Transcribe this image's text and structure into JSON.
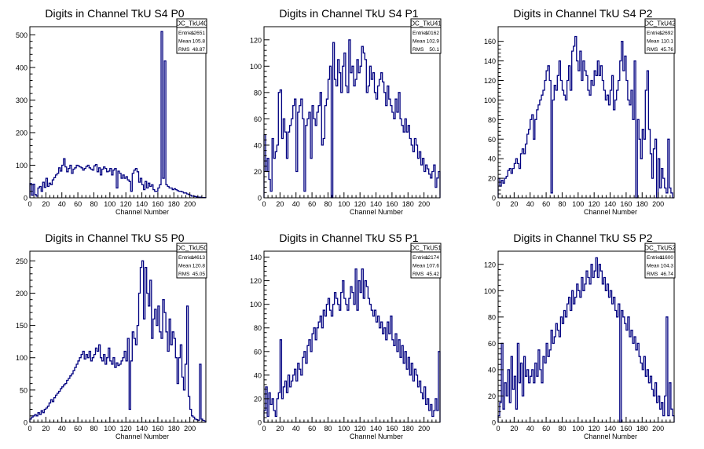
{
  "colors": {
    "line": "#000080",
    "frame": "#000000",
    "background": "#ffffff"
  },
  "chart_data": [
    {
      "type": "histogram",
      "title": "Digits in Channel TkU S4 P0",
      "xlabel": "Channel Number",
      "ylabel": "",
      "xlim": [
        0,
        220
      ],
      "ylim": [
        0,
        525
      ],
      "xticks": [
        "0",
        "20",
        "40",
        "60",
        "80",
        "100",
        "120",
        "140",
        "160",
        "180",
        "200"
      ],
      "yticks": [
        "0",
        "100",
        "200",
        "300",
        "400",
        "500"
      ],
      "stats": {
        "name": "DC_TkU40",
        "entries": "12651",
        "mean": "105.8",
        "rms": "48.87"
      },
      "labels": {
        "entries": "Entries",
        "mean": "Mean",
        "rms": "RMS"
      },
      "bins": {
        "x0": 0,
        "width": 2
      },
      "values": [
        44,
        8,
        42,
        10,
        5,
        30,
        35,
        20,
        48,
        32,
        60,
        35,
        45,
        40,
        55,
        62,
        70,
        75,
        92,
        82,
        100,
        120,
        95,
        80,
        90,
        100,
        75,
        88,
        92,
        100,
        98,
        95,
        92,
        85,
        90,
        96,
        100,
        92,
        88,
        85,
        98,
        102,
        80,
        92,
        70,
        88,
        95,
        90,
        80,
        82,
        90,
        70,
        85,
        90,
        30,
        82,
        75,
        60,
        70,
        60,
        65,
        55,
        50,
        20,
        75,
        85,
        90,
        80,
        48,
        60,
        40,
        25,
        50,
        30,
        45,
        35,
        40,
        25,
        20,
        20,
        30,
        40,
        510,
        60,
        420,
        40,
        35,
        30,
        30,
        25,
        28,
        25,
        22,
        20,
        20,
        18,
        15,
        15,
        12,
        10,
        8,
        5,
        5,
        4,
        3,
        2,
        2,
        1,
        1,
        1
      ]
    },
    {
      "type": "histogram",
      "title": "Digits in Channel TkU S4 P1",
      "xlabel": "Channel Number",
      "ylabel": "",
      "xlim": [
        0,
        220
      ],
      "ylim": [
        0,
        130
      ],
      "xticks": [
        "0",
        "20",
        "40",
        "60",
        "80",
        "100",
        "120",
        "140",
        "160",
        "180",
        "200"
      ],
      "yticks": [
        "0",
        "20",
        "40",
        "60",
        "80",
        "100",
        "120"
      ],
      "stats": {
        "name": "DC_TkU41",
        "entries": "10162",
        "mean": "102.9",
        "rms": "50.1"
      },
      "labels": {
        "entries": "Entries",
        "mean": "Mean",
        "rms": "RMS"
      },
      "bins": {
        "x0": 0,
        "width": 2
      },
      "values": [
        48,
        20,
        30,
        14,
        5,
        45,
        30,
        35,
        40,
        80,
        82,
        45,
        60,
        50,
        30,
        50,
        55,
        60,
        70,
        75,
        20,
        65,
        70,
        75,
        60,
        5,
        55,
        60,
        65,
        30,
        70,
        60,
        55,
        65,
        70,
        80,
        40,
        45,
        70,
        75,
        90,
        100,
        0,
        118,
        90,
        85,
        105,
        95,
        80,
        100,
        110,
        85,
        80,
        120,
        95,
        100,
        85,
        90,
        105,
        95,
        100,
        115,
        110,
        105,
        80,
        85,
        100,
        90,
        95,
        80,
        75,
        85,
        90,
        95,
        88,
        80,
        70,
        85,
        75,
        70,
        65,
        60,
        75,
        65,
        80,
        60,
        55,
        50,
        60,
        50,
        55,
        45,
        40,
        35,
        45,
        40,
        30,
        35,
        25,
        30,
        20,
        25,
        22,
        18,
        15,
        20,
        25,
        8,
        15,
        20
      ]
    },
    {
      "type": "histogram",
      "title": "Digits in Channel TkU S4 P2",
      "xlabel": "Channel Number",
      "ylabel": "",
      "xlim": [
        0,
        220
      ],
      "ylim": [
        0,
        175
      ],
      "xticks": [
        "0",
        "20",
        "40",
        "60",
        "80",
        "100",
        "120",
        "140",
        "160",
        "180",
        "200"
      ],
      "yticks": [
        "0",
        "20",
        "40",
        "60",
        "80",
        "100",
        "120",
        "140",
        "160"
      ],
      "stats": {
        "name": "DC_TkU42",
        "entries": "12692",
        "mean": "110.1",
        "rms": "45.76"
      },
      "labels": {
        "entries": "Entries",
        "mean": "Mean",
        "rms": "RMS"
      },
      "bins": {
        "x0": 0,
        "width": 2
      },
      "values": [
        20,
        12,
        18,
        15,
        20,
        22,
        28,
        30,
        25,
        30,
        35,
        40,
        35,
        30,
        45,
        50,
        45,
        55,
        65,
        70,
        80,
        85,
        60,
        80,
        90,
        95,
        100,
        105,
        110,
        120,
        130,
        135,
        120,
        5,
        100,
        115,
        110,
        125,
        140,
        120,
        110,
        105,
        100,
        120,
        135,
        110,
        150,
        155,
        165,
        140,
        130,
        150,
        120,
        140,
        130,
        125,
        110,
        105,
        120,
        115,
        130,
        125,
        140,
        125,
        135,
        120,
        110,
        100,
        105,
        95,
        110,
        125,
        90,
        100,
        110,
        120,
        140,
        160,
        130,
        145,
        120,
        100,
        95,
        110,
        80,
        140,
        0,
        80,
        60,
        40,
        70,
        60,
        110,
        130,
        70,
        45,
        20,
        50,
        60,
        0,
        40,
        10,
        30,
        20,
        10,
        5,
        60,
        10,
        5,
        0
      ]
    },
    {
      "type": "histogram",
      "title": "Digits in Channel TkU S5 P0",
      "xlabel": "Channel Number",
      "ylabel": "",
      "xlim": [
        0,
        220
      ],
      "ylim": [
        0,
        265
      ],
      "xticks": [
        "0",
        "20",
        "40",
        "60",
        "80",
        "100",
        "120",
        "140",
        "160",
        "180",
        "200"
      ],
      "yticks": [
        "0",
        "50",
        "100",
        "150",
        "200",
        "250"
      ],
      "stats": {
        "name": "DC_TkU50",
        "entries": "14613",
        "mean": "120.8",
        "rms": "45.05"
      },
      "labels": {
        "entries": "Entries",
        "mean": "Mean",
        "rms": "RMS"
      },
      "bins": {
        "x0": 0,
        "width": 2
      },
      "values": [
        5,
        8,
        10,
        12,
        10,
        15,
        12,
        18,
        15,
        20,
        22,
        25,
        30,
        35,
        32,
        38,
        42,
        45,
        48,
        52,
        55,
        58,
        60,
        65,
        68,
        72,
        75,
        80,
        85,
        90,
        95,
        100,
        105,
        110,
        98,
        105,
        100,
        110,
        95,
        100,
        105,
        115,
        110,
        120,
        100,
        95,
        105,
        90,
        100,
        115,
        95,
        90,
        100,
        85,
        92,
        88,
        90,
        95,
        100,
        110,
        95,
        130,
        20,
        95,
        140,
        130,
        120,
        150,
        200,
        240,
        250,
        160,
        240,
        200,
        180,
        220,
        130,
        160,
        175,
        150,
        180,
        140,
        130,
        190,
        170,
        140,
        110,
        160,
        120,
        140,
        130,
        100,
        60,
        100,
        120,
        70,
        50,
        90,
        180,
        40,
        20,
        10,
        8,
        5,
        4,
        3,
        90,
        5,
        3,
        2
      ]
    },
    {
      "type": "histogram",
      "title": "Digits in Channel TkU S5 P1",
      "xlabel": "Channel Number",
      "ylabel": "",
      "xlim": [
        0,
        220
      ],
      "ylim": [
        0,
        145
      ],
      "xticks": [
        "0",
        "20",
        "40",
        "60",
        "80",
        "100",
        "120",
        "140",
        "160",
        "180",
        "200"
      ],
      "yticks": [
        "0",
        "20",
        "40",
        "60",
        "80",
        "100",
        "120",
        "140"
      ],
      "stats": {
        "name": "DC_TkU51",
        "entries": "12174",
        "mean": "107.6",
        "rms": "45.42"
      },
      "labels": {
        "entries": "Entries",
        "mean": "Mean",
        "rms": "RMS"
      },
      "bins": {
        "x0": 0,
        "width": 2
      },
      "values": [
        10,
        30,
        5,
        25,
        15,
        20,
        10,
        5,
        20,
        25,
        70,
        20,
        30,
        35,
        25,
        40,
        30,
        35,
        40,
        45,
        35,
        50,
        45,
        40,
        55,
        60,
        50,
        65,
        70,
        60,
        75,
        80,
        70,
        80,
        85,
        90,
        80,
        95,
        90,
        100,
        105,
        95,
        90,
        100,
        110,
        105,
        100,
        95,
        110,
        120,
        105,
        100,
        95,
        105,
        115,
        110,
        100,
        130,
        95,
        120,
        110,
        130,
        105,
        120,
        115,
        105,
        100,
        95,
        90,
        95,
        85,
        90,
        80,
        85,
        75,
        80,
        70,
        85,
        75,
        90,
        70,
        65,
        75,
        60,
        70,
        55,
        65,
        50,
        60,
        45,
        55,
        40,
        50,
        35,
        45,
        40,
        30,
        35,
        25,
        20,
        30,
        15,
        20,
        10,
        15,
        5,
        10,
        20,
        10,
        60
      ]
    },
    {
      "type": "histogram",
      "title": "Digits in Channel TkU S5 P2",
      "xlabel": "Channel Number",
      "ylabel": "",
      "xlim": [
        0,
        220
      ],
      "ylim": [
        0,
        130
      ],
      "xticks": [
        "0",
        "20",
        "40",
        "60",
        "80",
        "100",
        "120",
        "140",
        "160",
        "180",
        "200"
      ],
      "yticks": [
        "0",
        "20",
        "40",
        "60",
        "80",
        "100",
        "120"
      ],
      "stats": {
        "name": "DC_TkU52",
        "entries": "11600",
        "mean": "104.3",
        "rms": "46.74"
      },
      "labels": {
        "entries": "Entries",
        "mean": "Mean",
        "rms": "RMS"
      },
      "bins": {
        "x0": 0,
        "width": 2
      },
      "values": [
        5,
        15,
        60,
        10,
        30,
        20,
        40,
        15,
        50,
        25,
        35,
        10,
        60,
        30,
        45,
        20,
        50,
        35,
        40,
        30,
        35,
        40,
        30,
        45,
        35,
        55,
        40,
        30,
        50,
        45,
        60,
        50,
        55,
        70,
        60,
        65,
        75,
        70,
        65,
        80,
        75,
        85,
        80,
        90,
        95,
        85,
        100,
        90,
        95,
        105,
        100,
        95,
        110,
        100,
        105,
        115,
        110,
        105,
        120,
        110,
        115,
        125,
        110,
        120,
        115,
        105,
        110,
        100,
        105,
        95,
        100,
        90,
        95,
        85,
        80,
        90,
        0,
        85,
        80,
        75,
        70,
        80,
        65,
        70,
        60,
        65,
        55,
        60,
        50,
        45,
        40,
        50,
        35,
        40,
        30,
        35,
        25,
        20,
        30,
        15,
        20,
        10,
        15,
        5,
        20,
        80,
        5,
        30,
        10,
        5
      ]
    }
  ]
}
